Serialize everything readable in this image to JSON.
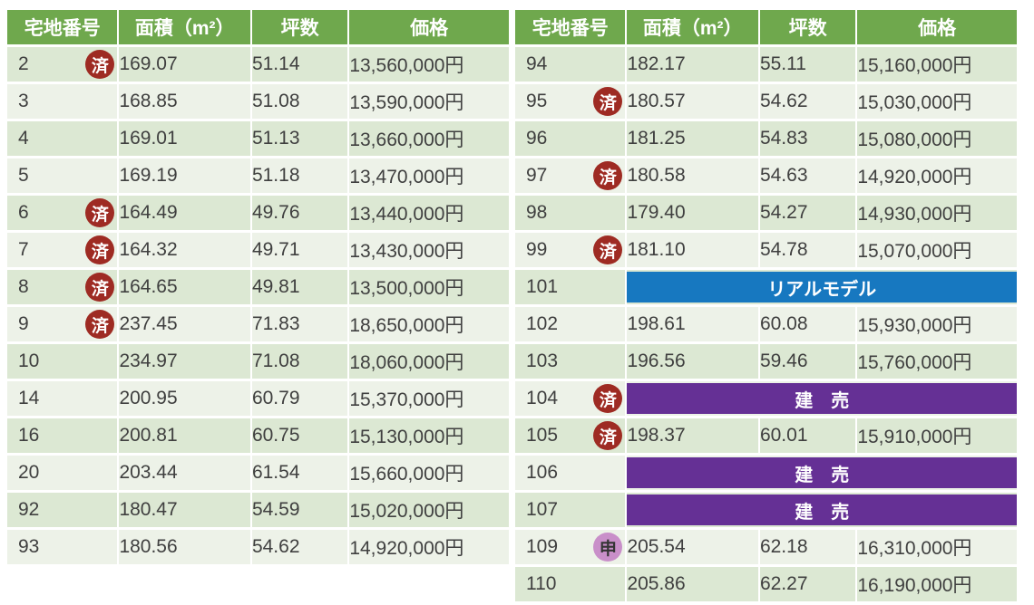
{
  "colors": {
    "header_green": "#6fa84d",
    "row_dark": "#dce8d3",
    "row_light": "#edf2e8",
    "badge_red": "#9e2b23",
    "badge_pink": "#c98fc9",
    "banner_blue": "#1778c0",
    "banner_purple": "#653095",
    "text": "#3f3f3f"
  },
  "badges": {
    "sold": "済",
    "applied": "申"
  },
  "columns": [
    "宅地番号",
    "面積（m²）",
    "坪数",
    "価格"
  ],
  "tables": [
    {
      "name": "left",
      "rows": [
        {
          "lot": "2",
          "badge": "済",
          "area": "169.07",
          "tsubo": "51.14",
          "price": "13,560,000円"
        },
        {
          "lot": "3",
          "area": "168.85",
          "tsubo": "51.08",
          "price": "13,590,000円"
        },
        {
          "lot": "4",
          "area": "169.01",
          "tsubo": "51.13",
          "price": "13,660,000円"
        },
        {
          "lot": "5",
          "area": "169.19",
          "tsubo": "51.18",
          "price": "13,470,000円"
        },
        {
          "lot": "6",
          "badge": "済",
          "area": "164.49",
          "tsubo": "49.76",
          "price": "13,440,000円"
        },
        {
          "lot": "7",
          "badge": "済",
          "area": "164.32",
          "tsubo": "49.71",
          "price": "13,430,000円"
        },
        {
          "lot": "8",
          "badge": "済",
          "area": "164.65",
          "tsubo": "49.81",
          "price": "13,500,000円"
        },
        {
          "lot": "9",
          "badge": "済",
          "area": "237.45",
          "tsubo": "71.83",
          "price": "18,650,000円"
        },
        {
          "lot": "10",
          "area": "234.97",
          "tsubo": "71.08",
          "price": "18,060,000円"
        },
        {
          "lot": "14",
          "area": "200.95",
          "tsubo": "60.79",
          "price": "15,370,000円"
        },
        {
          "lot": "16",
          "area": "200.81",
          "tsubo": "60.75",
          "price": "15,130,000円"
        },
        {
          "lot": "20",
          "area": "203.44",
          "tsubo": "61.54",
          "price": "15,660,000円"
        },
        {
          "lot": "92",
          "area": "180.47",
          "tsubo": "54.59",
          "price": "15,020,000円"
        },
        {
          "lot": "93",
          "area": "180.56",
          "tsubo": "54.62",
          "price": "14,920,000円"
        }
      ]
    },
    {
      "name": "right",
      "rows": [
        {
          "lot": "94",
          "area": "182.17",
          "tsubo": "55.11",
          "price": "15,160,000円"
        },
        {
          "lot": "95",
          "badge": "済",
          "area": "180.57",
          "tsubo": "54.62",
          "price": "15,030,000円"
        },
        {
          "lot": "96",
          "area": "181.25",
          "tsubo": "54.83",
          "price": "15,080,000円"
        },
        {
          "lot": "97",
          "badge": "済",
          "area": "180.58",
          "tsubo": "54.63",
          "price": "14,920,000円"
        },
        {
          "lot": "98",
          "area": "179.40",
          "tsubo": "54.27",
          "price": "14,930,000円"
        },
        {
          "lot": "99",
          "badge": "済",
          "area": "181.10",
          "tsubo": "54.78",
          "price": "15,070,000円"
        },
        {
          "lot": "101",
          "banner": {
            "type": "model",
            "text": "リアルモデル"
          }
        },
        {
          "lot": "102",
          "area": "198.61",
          "tsubo": "60.08",
          "price": "15,930,000円"
        },
        {
          "lot": "103",
          "area": "196.56",
          "tsubo": "59.46",
          "price": "15,760,000円"
        },
        {
          "lot": "104",
          "badge": "済",
          "banner": {
            "type": "built",
            "text": "建　売"
          }
        },
        {
          "lot": "105",
          "badge": "済",
          "area": "198.37",
          "tsubo": "60.01",
          "price": "15,910,000円"
        },
        {
          "lot": "106",
          "banner": {
            "type": "built",
            "text": "建　売"
          }
        },
        {
          "lot": "107",
          "banner": {
            "type": "built",
            "text": "建　売"
          }
        },
        {
          "lot": "109",
          "badge": "申",
          "area": "205.54",
          "tsubo": "62.18",
          "price": "16,310,000円"
        },
        {
          "lot": "110",
          "area": "205.86",
          "tsubo": "62.27",
          "price": "16,190,000円"
        }
      ]
    }
  ]
}
